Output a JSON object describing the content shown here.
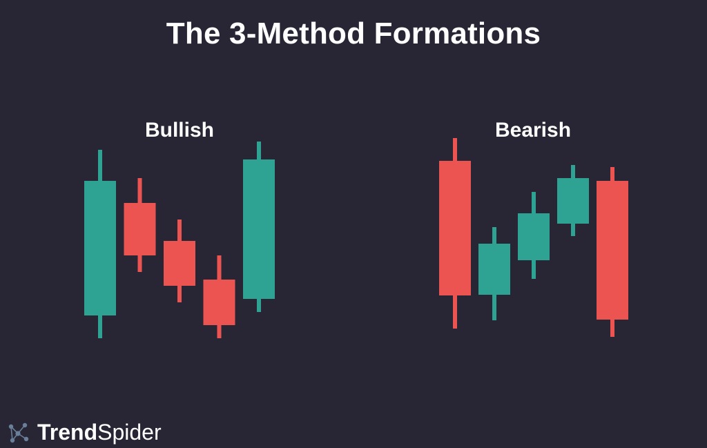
{
  "title": "The 3-Method Formations",
  "colors": {
    "background": "#282634",
    "bullish": "#2fa393",
    "bearish": "#ec5451",
    "text": "#ffffff",
    "logo_dots": "#6a7f9a"
  },
  "brand": {
    "name_bold": "Trend",
    "name_regular": "Spider",
    "icon": "network-nodes-icon"
  },
  "panels": [
    {
      "label": "Bullish",
      "candles": [
        {
          "direction": "up",
          "open": 33,
          "close": 228,
          "high": 273,
          "low": 0
        },
        {
          "direction": "down",
          "open": 196,
          "close": 120,
          "high": 232,
          "low": 96
        },
        {
          "direction": "down",
          "open": 141,
          "close": 76,
          "high": 172,
          "low": 52
        },
        {
          "direction": "down",
          "open": 85,
          "close": 19,
          "high": 120,
          "low": 0
        },
        {
          "direction": "up",
          "open": 57,
          "close": 259,
          "high": 285,
          "low": 38
        }
      ]
    },
    {
      "label": "Bearish",
      "candles": [
        {
          "direction": "down",
          "open": 257,
          "close": 62,
          "high": 290,
          "low": 14
        },
        {
          "direction": "up",
          "open": 63,
          "close": 137,
          "high": 161,
          "low": 26
        },
        {
          "direction": "up",
          "open": 113,
          "close": 181,
          "high": 212,
          "low": 86
        },
        {
          "direction": "up",
          "open": 166,
          "close": 232,
          "high": 251,
          "low": 148
        },
        {
          "direction": "down",
          "open": 228,
          "close": 27,
          "high": 248,
          "low": 2
        }
      ]
    }
  ]
}
